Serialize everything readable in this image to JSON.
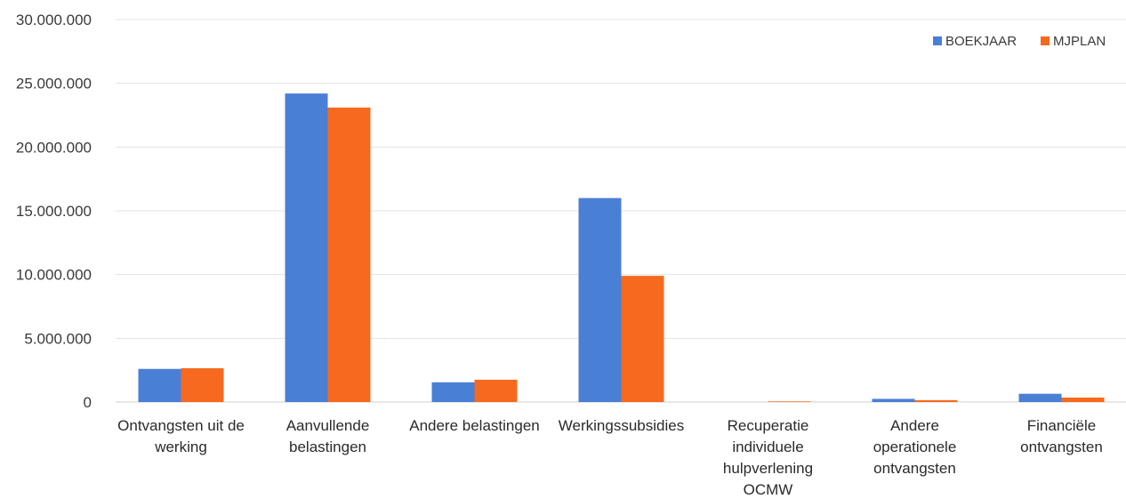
{
  "chart_data": {
    "type": "bar",
    "title": "",
    "xlabel": "",
    "ylabel": "",
    "ylim": [
      0,
      30000000
    ],
    "yticks": [
      0,
      5000000,
      10000000,
      15000000,
      20000000,
      25000000,
      30000000
    ],
    "ytick_labels": [
      "0",
      "5.000.000",
      "10.000.000",
      "15.000.000",
      "20.000.000",
      "25.000.000",
      "30.000.000"
    ],
    "grid": true,
    "legend_position": "top-right",
    "categories": [
      [
        "Ontvangsten uit de",
        "werking"
      ],
      [
        "Aanvullende",
        "belastingen"
      ],
      [
        "Andere belastingen"
      ],
      [
        "Werkingssubsidies"
      ],
      [
        "Recuperatie",
        "individuele",
        "hulpverlening",
        "OCMW"
      ],
      [
        "Andere",
        "operationele",
        "ontvangsten"
      ],
      [
        "Financiële",
        "ontvangsten"
      ]
    ],
    "series": [
      {
        "name": "BOEKJAAR",
        "color": "#4A7FD6",
        "values": [
          2600000,
          24200000,
          1550000,
          16000000,
          0,
          250000,
          650000
        ]
      },
      {
        "name": "MJPLAN",
        "color": "#F56A1E",
        "values": [
          2650000,
          23100000,
          1750000,
          9900000,
          50000,
          150000,
          350000
        ]
      }
    ]
  }
}
